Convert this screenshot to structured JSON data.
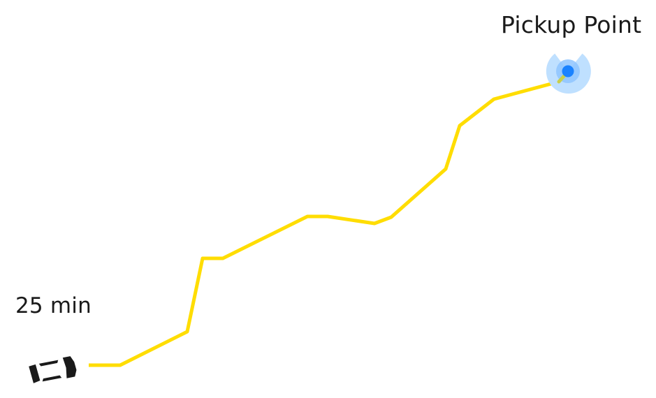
{
  "pickup": {
    "label": "Pickup Point",
    "marker_color": "#1a82ff",
    "halo_color": "#bfe0ff",
    "ring_color": "#8ec4ff",
    "icon": "location-pin-icon"
  },
  "vehicle": {
    "eta": "25 min",
    "icon": "car-icon",
    "color": "#1a1a1a"
  },
  "route": {
    "color": "#ffdd00"
  }
}
